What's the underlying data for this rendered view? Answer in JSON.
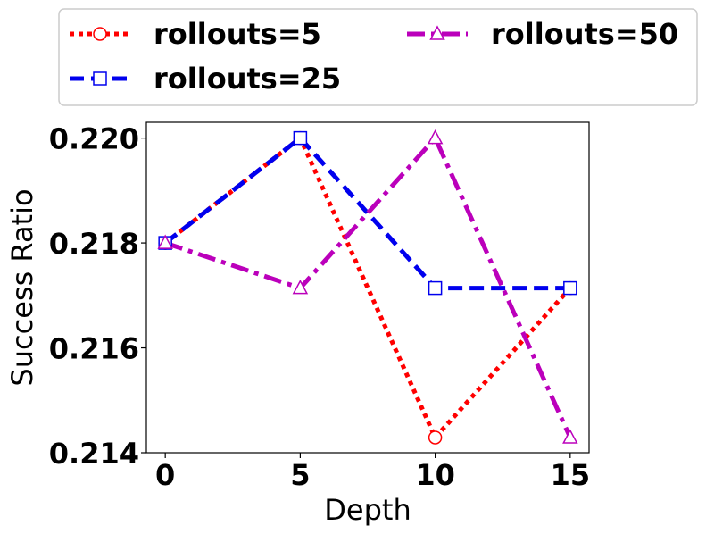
{
  "chart_data": {
    "type": "line",
    "xlabel": "Depth",
    "ylabel": "Success Ratio",
    "x": [
      0,
      5,
      10,
      15
    ],
    "xticks": [
      "0",
      "5",
      "10",
      "15"
    ],
    "yticks": [
      "0.214",
      "0.216",
      "0.218",
      "0.220"
    ],
    "xlim": [
      -0.7,
      15.7
    ],
    "ylim": [
      0.214,
      0.2203
    ],
    "grid": false,
    "legend_position": "top (above plot), two columns",
    "series": [
      {
        "name": "rollouts=5",
        "values": [
          0.218,
          0.22,
          0.21429,
          0.21714
        ],
        "color": "#ff0000",
        "marker": "circle",
        "linestyle": "dotted"
      },
      {
        "name": "rollouts=25",
        "values": [
          0.218,
          0.22,
          0.21714,
          0.21714
        ],
        "color": "#0000ee",
        "marker": "square",
        "linestyle": "dashed"
      },
      {
        "name": "rollouts=50",
        "values": [
          0.218,
          0.21714,
          0.22,
          0.21429
        ],
        "color": "#bb00bb",
        "marker": "triangle",
        "linestyle": "dashdot"
      }
    ]
  }
}
